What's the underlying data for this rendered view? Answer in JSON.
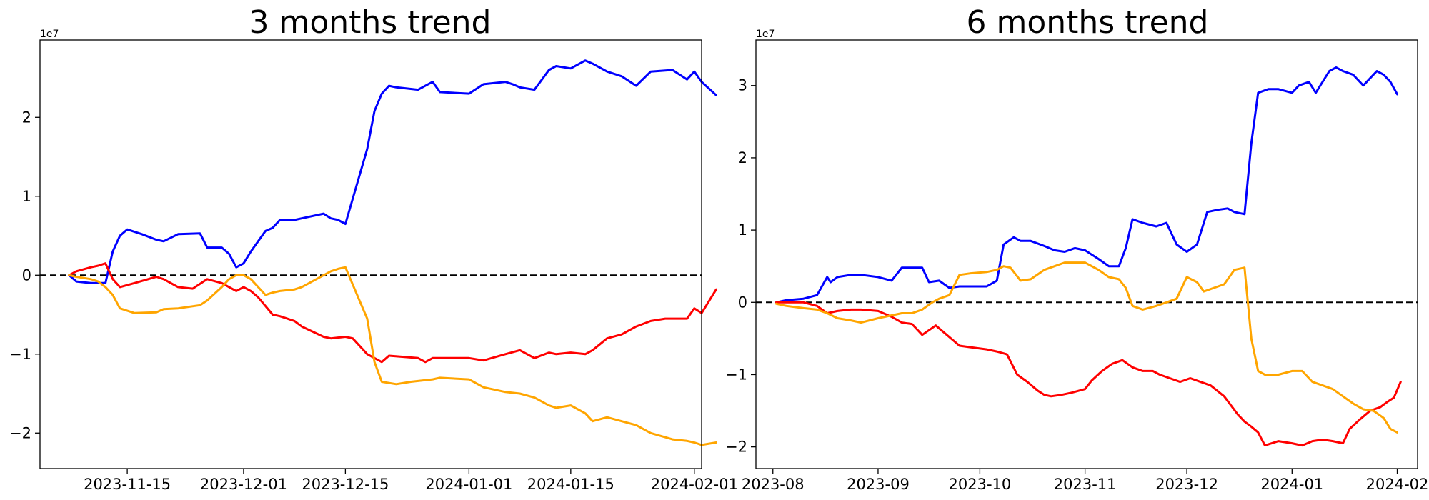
{
  "chart_data": [
    {
      "type": "line",
      "title": "3 months trend",
      "xlabel": "",
      "ylabel": "",
      "y_unit_multiplier": "1e7",
      "xlim": [
        "2023-11-03",
        "2024-02-02"
      ],
      "ylim": [
        -2.45,
        2.98
      ],
      "x_ticks": [
        "2023-11-15",
        "2023-12-01",
        "2023-12-15",
        "2024-01-01",
        "2024-01-15",
        "2024-02-01"
      ],
      "y_ticks": [
        -2,
        -1,
        0,
        1,
        2
      ],
      "y_tick_labels": [
        "−2",
        "−1",
        "0",
        "1",
        "2"
      ],
      "zero_line": true,
      "grid": false,
      "series": [
        {
          "color": "#0000ff",
          "x": [
            "2023-11-07",
            "2023-11-08",
            "2023-11-10",
            "2023-11-12",
            "2023-11-13",
            "2023-11-14",
            "2023-11-15",
            "2023-11-17",
            "2023-11-19",
            "2023-11-20",
            "2023-11-22",
            "2023-11-25",
            "2023-11-26",
            "2023-11-28",
            "2023-11-29",
            "2023-11-30",
            "2023-12-01",
            "2023-12-02",
            "2023-12-04",
            "2023-12-05",
            "2023-12-06",
            "2023-12-08",
            "2023-12-09",
            "2023-12-12",
            "2023-12-13",
            "2023-12-14",
            "2023-12-15",
            "2023-12-18",
            "2023-12-19",
            "2023-12-20",
            "2023-12-21",
            "2023-12-22",
            "2023-12-25",
            "2023-12-27",
            "2023-12-28",
            "2024-01-01",
            "2024-01-03",
            "2024-01-06",
            "2024-01-07",
            "2024-01-08",
            "2024-01-10",
            "2024-01-12",
            "2024-01-13",
            "2024-01-15",
            "2024-01-17",
            "2024-01-18",
            "2024-01-20",
            "2024-01-22",
            "2024-01-24",
            "2024-01-26",
            "2024-01-29",
            "2024-01-31",
            "2024-02-01",
            "2024-02-02",
            "2024-02-04"
          ],
          "values": [
            0.0,
            -0.08,
            -0.1,
            -0.1,
            0.3,
            0.5,
            0.58,
            0.52,
            0.45,
            0.43,
            0.52,
            0.53,
            0.35,
            0.35,
            0.27,
            0.1,
            0.15,
            0.3,
            0.56,
            0.6,
            0.7,
            0.7,
            0.72,
            0.78,
            0.72,
            0.7,
            0.65,
            1.6,
            2.08,
            2.3,
            2.4,
            2.38,
            2.35,
            2.45,
            2.32,
            2.3,
            2.42,
            2.45,
            2.42,
            2.38,
            2.35,
            2.6,
            2.65,
            2.62,
            2.72,
            2.68,
            2.58,
            2.52,
            2.4,
            2.58,
            2.6,
            2.48,
            2.58,
            2.45,
            2.28
          ]
        },
        {
          "color": "#ff0000",
          "x": [
            "2023-11-07",
            "2023-11-08",
            "2023-11-10",
            "2023-11-11",
            "2023-11-12",
            "2023-11-13",
            "2023-11-14",
            "2023-11-16",
            "2023-11-19",
            "2023-11-20",
            "2023-11-22",
            "2023-11-24",
            "2023-11-26",
            "2023-11-28",
            "2023-11-29",
            "2023-11-30",
            "2023-12-01",
            "2023-12-02",
            "2023-12-03",
            "2023-12-05",
            "2023-12-06",
            "2023-12-08",
            "2023-12-09",
            "2023-12-12",
            "2023-12-13",
            "2023-12-15",
            "2023-12-16",
            "2023-12-18",
            "2023-12-19",
            "2023-12-20",
            "2023-12-21",
            "2023-12-25",
            "2023-12-26",
            "2023-12-27",
            "2024-01-01",
            "2024-01-03",
            "2024-01-06",
            "2024-01-08",
            "2024-01-10",
            "2024-01-12",
            "2024-01-13",
            "2024-01-15",
            "2024-01-17",
            "2024-01-18",
            "2024-01-20",
            "2024-01-22",
            "2024-01-24",
            "2024-01-26",
            "2024-01-28",
            "2024-01-31",
            "2024-02-01",
            "2024-02-02",
            "2024-02-04"
          ],
          "values": [
            0.0,
            0.05,
            0.1,
            0.12,
            0.15,
            -0.05,
            -0.15,
            -0.1,
            -0.02,
            -0.05,
            -0.15,
            -0.17,
            -0.05,
            -0.1,
            -0.15,
            -0.2,
            -0.15,
            -0.2,
            -0.28,
            -0.5,
            -0.52,
            -0.58,
            -0.65,
            -0.78,
            -0.8,
            -0.78,
            -0.8,
            -1.0,
            -1.05,
            -1.1,
            -1.02,
            -1.05,
            -1.1,
            -1.05,
            -1.05,
            -1.08,
            -1.0,
            -0.95,
            -1.05,
            -0.98,
            -1.0,
            -0.98,
            -1.0,
            -0.95,
            -0.8,
            -0.75,
            -0.65,
            -0.58,
            -0.55,
            -0.55,
            -0.42,
            -0.48,
            -0.18
          ]
        },
        {
          "color": "#ffa500",
          "x": [
            "2023-11-07",
            "2023-11-08",
            "2023-11-10",
            "2023-11-11",
            "2023-11-12",
            "2023-11-13",
            "2023-11-14",
            "2023-11-16",
            "2023-11-19",
            "2023-11-20",
            "2023-11-22",
            "2023-11-25",
            "2023-11-26",
            "2023-11-28",
            "2023-11-29",
            "2023-11-30",
            "2023-12-01",
            "2023-12-02",
            "2023-12-04",
            "2023-12-05",
            "2023-12-06",
            "2023-12-08",
            "2023-12-09",
            "2023-12-12",
            "2023-12-13",
            "2023-12-14",
            "2023-12-15",
            "2023-12-18",
            "2023-12-19",
            "2023-12-20",
            "2023-12-22",
            "2023-12-24",
            "2023-12-27",
            "2023-12-28",
            "2024-01-01",
            "2024-01-03",
            "2024-01-06",
            "2024-01-08",
            "2024-01-10",
            "2024-01-12",
            "2024-01-13",
            "2024-01-15",
            "2024-01-17",
            "2024-01-18",
            "2024-01-20",
            "2024-01-22",
            "2024-01-24",
            "2024-01-26",
            "2024-01-29",
            "2024-01-31",
            "2024-02-01",
            "2024-02-02",
            "2024-02-04"
          ],
          "values": [
            0.0,
            -0.02,
            -0.05,
            -0.08,
            -0.15,
            -0.25,
            -0.42,
            -0.48,
            -0.47,
            -0.43,
            -0.42,
            -0.38,
            -0.32,
            -0.15,
            -0.05,
            0.0,
            0.0,
            -0.05,
            -0.25,
            -0.22,
            -0.2,
            -0.18,
            -0.15,
            0.0,
            0.05,
            0.08,
            0.1,
            -0.55,
            -1.1,
            -1.35,
            -1.38,
            -1.35,
            -1.32,
            -1.3,
            -1.32,
            -1.42,
            -1.48,
            -1.5,
            -1.55,
            -1.65,
            -1.68,
            -1.65,
            -1.75,
            -1.85,
            -1.8,
            -1.85,
            -1.9,
            -2.0,
            -2.08,
            -2.1,
            -2.12,
            -2.15,
            -2.12
          ]
        }
      ]
    },
    {
      "type": "line",
      "title": "6 months trend",
      "xlabel": "",
      "ylabel": "",
      "y_unit_multiplier": "1e7",
      "xlim": [
        "2023-07-27",
        "2024-02-07"
      ],
      "ylim": [
        -2.3,
        3.63
      ],
      "x_ticks": [
        "2023-08",
        "2023-09",
        "2023-10",
        "2023-11",
        "2023-12",
        "2024-01",
        "2024-02"
      ],
      "y_ticks": [
        -2,
        -1,
        0,
        1,
        2,
        3
      ],
      "y_tick_labels": [
        "−2",
        "−1",
        "0",
        "1",
        "2",
        "3"
      ],
      "zero_line": true,
      "grid": false,
      "series": [
        {
          "color": "#0000ff",
          "x": [
            "2023-08-02",
            "2023-08-05",
            "2023-08-10",
            "2023-08-14",
            "2023-08-17",
            "2023-08-18",
            "2023-08-20",
            "2023-08-24",
            "2023-08-27",
            "2023-09-01",
            "2023-09-05",
            "2023-09-08",
            "2023-09-11",
            "2023-09-14",
            "2023-09-16",
            "2023-09-19",
            "2023-09-22",
            "2023-09-25",
            "2023-09-28",
            "2023-10-03",
            "2023-10-06",
            "2023-10-08",
            "2023-10-11",
            "2023-10-13",
            "2023-10-16",
            "2023-10-20",
            "2023-10-23",
            "2023-10-26",
            "2023-10-29",
            "2023-11-01",
            "2023-11-05",
            "2023-11-08",
            "2023-11-11",
            "2023-11-13",
            "2023-11-15",
            "2023-11-18",
            "2023-11-22",
            "2023-11-25",
            "2023-11-28",
            "2023-12-01",
            "2023-12-04",
            "2023-12-07",
            "2023-12-10",
            "2023-12-13",
            "2023-12-15",
            "2023-12-18",
            "2023-12-20",
            "2023-12-22",
            "2023-12-25",
            "2023-12-28",
            "2024-01-01",
            "2024-01-03",
            "2024-01-06",
            "2024-01-08",
            "2024-01-12",
            "2024-01-14",
            "2024-01-16",
            "2024-01-19",
            "2024-01-22",
            "2024-01-26",
            "2024-01-28",
            "2024-01-30",
            "2024-02-01"
          ],
          "values": [
            0.0,
            0.03,
            0.05,
            0.1,
            0.35,
            0.28,
            0.35,
            0.38,
            0.38,
            0.35,
            0.3,
            0.48,
            0.48,
            0.48,
            0.28,
            0.3,
            0.2,
            0.22,
            0.22,
            0.22,
            0.3,
            0.8,
            0.9,
            0.85,
            0.85,
            0.78,
            0.72,
            0.7,
            0.75,
            0.72,
            0.6,
            0.5,
            0.5,
            0.75,
            1.15,
            1.1,
            1.05,
            1.1,
            0.8,
            0.7,
            0.8,
            1.25,
            1.28,
            1.3,
            1.25,
            1.22,
            2.2,
            2.9,
            2.95,
            2.95,
            2.9,
            3.0,
            3.05,
            2.9,
            3.2,
            3.25,
            3.2,
            3.15,
            3.0,
            3.2,
            3.15,
            3.05,
            2.88
          ]
        },
        {
          "color": "#ff0000",
          "x": [
            "2023-08-02",
            "2023-08-05",
            "2023-08-10",
            "2023-08-14",
            "2023-08-17",
            "2023-08-20",
            "2023-08-24",
            "2023-08-27",
            "2023-09-01",
            "2023-09-05",
            "2023-09-08",
            "2023-09-11",
            "2023-09-14",
            "2023-09-18",
            "2023-09-22",
            "2023-09-25",
            "2023-09-28",
            "2023-10-03",
            "2023-10-06",
            "2023-10-09",
            "2023-10-12",
            "2023-10-15",
            "2023-10-18",
            "2023-10-20",
            "2023-10-22",
            "2023-10-25",
            "2023-10-28",
            "2023-11-01",
            "2023-11-03",
            "2023-11-06",
            "2023-11-09",
            "2023-11-12",
            "2023-11-15",
            "2023-11-18",
            "2023-11-21",
            "2023-11-23",
            "2023-11-26",
            "2023-11-29",
            "2023-12-02",
            "2023-12-05",
            "2023-12-08",
            "2023-12-12",
            "2023-12-16",
            "2023-12-18",
            "2023-12-20",
            "2023-12-22",
            "2023-12-24",
            "2023-12-28",
            "2024-01-01",
            "2024-01-04",
            "2024-01-07",
            "2024-01-10",
            "2024-01-13",
            "2024-01-16",
            "2024-01-18",
            "2024-01-21",
            "2024-01-24",
            "2024-01-27",
            "2024-01-29",
            "2024-01-31",
            "2024-02-02"
          ],
          "values": [
            0.0,
            0.0,
            0.0,
            -0.05,
            -0.15,
            -0.12,
            -0.1,
            -0.1,
            -0.12,
            -0.2,
            -0.28,
            -0.3,
            -0.45,
            -0.32,
            -0.48,
            -0.6,
            -0.62,
            -0.65,
            -0.68,
            -0.72,
            -1.0,
            -1.1,
            -1.22,
            -1.28,
            -1.3,
            -1.28,
            -1.25,
            -1.2,
            -1.08,
            -0.95,
            -0.85,
            -0.8,
            -0.9,
            -0.95,
            -0.95,
            -1.0,
            -1.05,
            -1.1,
            -1.05,
            -1.1,
            -1.15,
            -1.3,
            -1.55,
            -1.65,
            -1.72,
            -1.8,
            -1.98,
            -1.92,
            -1.95,
            -1.98,
            -1.92,
            -1.9,
            -1.92,
            -1.95,
            -1.75,
            -1.62,
            -1.5,
            -1.45,
            -1.38,
            -1.32,
            -1.1
          ]
        },
        {
          "color": "#ffa500",
          "x": [
            "2023-08-02",
            "2023-08-05",
            "2023-08-10",
            "2023-08-14",
            "2023-08-17",
            "2023-08-20",
            "2023-08-24",
            "2023-08-27",
            "2023-09-01",
            "2023-09-05",
            "2023-09-08",
            "2023-09-11",
            "2023-09-14",
            "2023-09-17",
            "2023-09-19",
            "2023-09-22",
            "2023-09-25",
            "2023-09-28",
            "2023-10-03",
            "2023-10-06",
            "2023-10-08",
            "2023-10-10",
            "2023-10-13",
            "2023-10-16",
            "2023-10-20",
            "2023-10-23",
            "2023-10-26",
            "2023-10-29",
            "2023-11-01",
            "2023-11-05",
            "2023-11-08",
            "2023-11-11",
            "2023-11-13",
            "2023-11-15",
            "2023-11-18",
            "2023-11-22",
            "2023-11-25",
            "2023-11-28",
            "2023-12-01",
            "2023-12-04",
            "2023-12-06",
            "2023-12-09",
            "2023-12-12",
            "2023-12-15",
            "2023-12-18",
            "2023-12-20",
            "2023-12-22",
            "2023-12-24",
            "2023-12-28",
            "2024-01-01",
            "2024-01-04",
            "2024-01-07",
            "2024-01-10",
            "2024-01-13",
            "2024-01-16",
            "2024-01-19",
            "2024-01-22",
            "2024-01-25",
            "2024-01-28",
            "2024-01-30",
            "2024-02-01"
          ],
          "values": [
            -0.02,
            -0.05,
            -0.08,
            -0.1,
            -0.15,
            -0.22,
            -0.25,
            -0.28,
            -0.22,
            -0.18,
            -0.15,
            -0.15,
            -0.1,
            0.0,
            0.05,
            0.1,
            0.38,
            0.4,
            0.42,
            0.45,
            0.5,
            0.48,
            0.3,
            0.32,
            0.45,
            0.5,
            0.55,
            0.55,
            0.55,
            0.45,
            0.35,
            0.32,
            0.2,
            -0.05,
            -0.1,
            -0.05,
            0.0,
            0.05,
            0.35,
            0.28,
            0.15,
            0.2,
            0.25,
            0.45,
            0.48,
            -0.5,
            -0.95,
            -1.0,
            -1.0,
            -0.95,
            -0.95,
            -1.1,
            -1.15,
            -1.2,
            -1.3,
            -1.4,
            -1.48,
            -1.5,
            -1.6,
            -1.75,
            -1.8
          ]
        }
      ]
    }
  ]
}
